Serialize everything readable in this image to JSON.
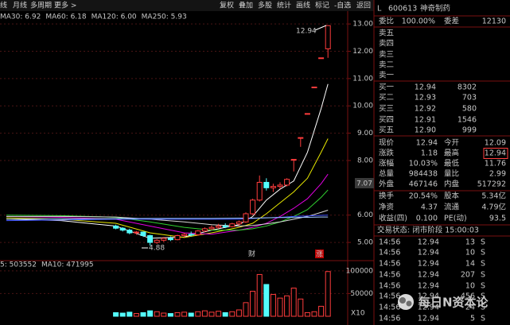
{
  "toolbar": {
    "left": [
      "线",
      "月线",
      "多周期",
      "更多 >"
    ],
    "right": [
      "复权",
      "叠加",
      "多股",
      "统计",
      "画线",
      "标记",
      "-自选",
      "返回"
    ]
  },
  "chart_data": [
    {
      "type": "candlestick",
      "x": [
        16,
        17,
        18,
        19,
        20,
        21,
        22,
        23,
        24,
        25,
        26,
        27,
        28,
        29,
        30,
        31,
        32,
        33,
        34,
        35,
        36,
        37,
        38,
        39,
        40,
        41,
        42,
        43,
        44,
        45,
        46,
        47
      ],
      "open": [
        5.6,
        5.52,
        5.45,
        5.35,
        5.38,
        5.25,
        5.0,
        5.08,
        5.15,
        5.1,
        5.25,
        5.3,
        5.28,
        5.42,
        5.5,
        5.55,
        5.6,
        5.58,
        5.68,
        5.75,
        6.05,
        6.55,
        7.2,
        7.0,
        7.05,
        7.1,
        8.04,
        8.84,
        9.72,
        10.69,
        11.76,
        12.09
      ],
      "high": [
        5.65,
        5.56,
        5.5,
        5.42,
        5.4,
        5.28,
        5.12,
        5.2,
        5.22,
        5.28,
        5.35,
        5.4,
        5.45,
        5.55,
        5.62,
        5.68,
        5.7,
        5.72,
        5.8,
        6.1,
        6.6,
        7.45,
        7.35,
        7.15,
        7.2,
        7.35,
        8.04,
        8.84,
        9.72,
        10.69,
        11.76,
        12.94
      ],
      "low": [
        5.48,
        5.4,
        5.3,
        5.28,
        5.2,
        4.88,
        4.95,
        5.02,
        5.05,
        5.08,
        5.18,
        5.22,
        5.25,
        5.38,
        5.45,
        5.5,
        5.52,
        5.55,
        5.62,
        5.72,
        6.0,
        6.5,
        6.9,
        6.85,
        6.95,
        7.05,
        7.6,
        8.5,
        9.72,
        10.69,
        11.76,
        11.76
      ],
      "close": [
        5.52,
        5.45,
        5.35,
        5.38,
        5.25,
        5.0,
        5.08,
        5.15,
        5.1,
        5.25,
        5.3,
        5.28,
        5.42,
        5.5,
        5.55,
        5.6,
        5.58,
        5.68,
        5.75,
        6.05,
        6.55,
        7.2,
        7.0,
        7.05,
        7.1,
        7.31,
        8.04,
        8.84,
        9.72,
        10.69,
        11.76,
        12.94
      ],
      "up_color": "#ff3c3c",
      "down_color": "#54fcfc",
      "ylim": [
        4.42,
        13.47
      ],
      "yticks": [
        {
          "value": 13,
          "label": "13.00"
        },
        {
          "value": 12,
          "label": "12.00"
        },
        {
          "value": 11,
          "label": "11.00"
        },
        {
          "value": 10,
          "label": "10.00"
        },
        {
          "value": 9,
          "label": "9.00"
        },
        {
          "value": 8,
          "label": "8.00"
        },
        {
          "value": 6,
          "label": "6.00"
        },
        {
          "value": 5,
          "label": "5.00"
        }
      ],
      "grid": true,
      "series": [
        {
          "color": "#ffffff",
          "x": [
            0,
            8,
            16,
            21,
            26,
            30,
            34,
            36,
            38,
            40,
            42,
            44,
            46,
            47
          ],
          "values": [
            5.85,
            5.8,
            5.6,
            5.15,
            5.2,
            5.45,
            5.65,
            5.95,
            6.55,
            6.95,
            7.25,
            8.3,
            9.9,
            10.8
          ]
        },
        {
          "color": "#e8e800",
          "x": [
            0,
            8,
            16,
            21,
            26,
            30,
            34,
            36,
            38,
            40,
            42,
            44,
            46,
            47
          ],
          "values": [
            5.9,
            5.85,
            5.7,
            5.35,
            5.18,
            5.35,
            5.55,
            5.7,
            6.05,
            6.45,
            6.85,
            7.35,
            8.3,
            8.8
          ]
        },
        {
          "color": "#e000e0",
          "x": [
            0,
            8,
            16,
            21,
            26,
            30,
            34,
            36,
            38,
            40,
            42,
            44,
            46,
            47
          ],
          "values": [
            5.95,
            5.92,
            5.85,
            5.6,
            5.35,
            5.3,
            5.45,
            5.55,
            5.7,
            5.95,
            6.25,
            6.6,
            7.15,
            7.5
          ]
        },
        {
          "name": "MA30: 6.92",
          "color": "#30d030",
          "x": [
            0,
            8,
            16,
            21,
            26,
            30,
            34,
            36,
            38,
            40,
            42,
            44,
            46,
            47
          ],
          "values": [
            6.0,
            5.98,
            5.92,
            5.75,
            5.55,
            5.45,
            5.45,
            5.5,
            5.6,
            5.75,
            5.95,
            6.2,
            6.65,
            6.92
          ]
        },
        {
          "name": "MA60: 6.18",
          "color": "#d8d8d8",
          "x": [
            0,
            8,
            16,
            21,
            26,
            30,
            34,
            36,
            38,
            40,
            42,
            44,
            46,
            47
          ],
          "values": [
            5.95,
            5.95,
            5.93,
            5.85,
            5.75,
            5.65,
            5.6,
            5.62,
            5.68,
            5.75,
            5.85,
            5.95,
            6.1,
            6.18
          ]
        },
        {
          "name": "MA120: 6.00",
          "color": "#3c50ff",
          "x": [
            0,
            8,
            16,
            21,
            26,
            30,
            34,
            36,
            38,
            40,
            42,
            44,
            46,
            47
          ],
          "values": [
            5.8,
            5.82,
            5.85,
            5.85,
            5.85,
            5.85,
            5.85,
            5.88,
            5.9,
            5.92,
            5.95,
            5.97,
            5.99,
            6.0
          ]
        },
        {
          "name": "MA250: 5.93",
          "color": "#a0c8ff",
          "x": [
            0,
            8,
            16,
            21,
            26,
            30,
            34,
            36,
            38,
            40,
            42,
            44,
            46,
            47
          ],
          "values": [
            5.85,
            5.86,
            5.87,
            5.88,
            5.88,
            5.88,
            5.89,
            5.89,
            5.9,
            5.91,
            5.91,
            5.92,
            5.93,
            5.93
          ]
        }
      ],
      "annotations": [
        "4.88",
        "12.94",
        "财",
        "涨"
      ],
      "crosshair_label": "7.07"
    },
    {
      "type": "bar",
      "x": [
        16,
        17,
        18,
        19,
        20,
        21,
        22,
        23,
        24,
        25,
        26,
        27,
        28,
        29,
        30,
        31,
        32,
        33,
        34,
        35,
        36,
        37,
        38,
        39,
        40,
        41,
        42,
        43,
        44,
        45,
        46,
        47
      ],
      "values": [
        8000,
        7000,
        9000,
        6000,
        8000,
        12000,
        10000,
        7000,
        6000,
        8000,
        9000,
        7000,
        10000,
        12000,
        9000,
        11000,
        8000,
        10000,
        14000,
        30000,
        55000,
        92000,
        70000,
        48000,
        40000,
        45000,
        62000,
        38000,
        8000,
        10000,
        22000,
        98444
      ],
      "ylim": [
        0,
        105000
      ],
      "yticks": [
        100000,
        50000
      ],
      "unit": "X10",
      "legend": [
        "5: 503552",
        "MA10: 471995"
      ]
    }
  ],
  "quote": {
    "market": "L",
    "code": "600613",
    "name": "神奇制药",
    "ratio_row": [
      "委比",
      "100.00%",
      "委差",
      "12130"
    ],
    "asks": [
      "卖五",
      "卖四",
      "卖三",
      "卖二",
      "卖一"
    ],
    "bids": [
      [
        "买一",
        "12.94",
        "8302"
      ],
      [
        "买二",
        "12.93",
        "703"
      ],
      [
        "买三",
        "12.92",
        "580"
      ],
      [
        "买四",
        "12.91",
        "1546"
      ],
      [
        "买五",
        "12.90",
        "999"
      ]
    ],
    "stats": [
      [
        "现价",
        "12.94",
        "今开",
        "12.09"
      ],
      [
        "涨跌",
        "1.18",
        "最高",
        "12.94"
      ],
      [
        "涨幅",
        "10.03%",
        "最低",
        "11.76"
      ],
      [
        "总量",
        "984438",
        "量比",
        "2.99"
      ],
      [
        "外盘",
        "467146",
        "内盘",
        "517292"
      ],
      [
        "换手",
        "20.54%",
        "股本",
        "5.34亿"
      ],
      [
        "净资",
        "4.37",
        "流通",
        "4.79亿"
      ],
      [
        "收益(四)",
        "0.100",
        "PE(动)",
        "93.5"
      ]
    ],
    "status": "交易状态: 闭市阶段 15:00:03",
    "trades": [
      [
        "14:56",
        "12.94",
        "13",
        "S"
      ],
      [
        "14:56",
        "12.94",
        "10",
        "S"
      ],
      [
        "14:56",
        "12.94",
        "14",
        "S"
      ],
      [
        "14:56",
        "12.94",
        "207",
        "S"
      ],
      [
        "14:56",
        "12.94",
        "10",
        "S"
      ],
      [
        "14:56",
        "12.94",
        "456",
        "S"
      ],
      [
        "14:56",
        "12.94",
        "24",
        "S"
      ],
      [
        "14:56",
        "12.94",
        "5",
        "S"
      ]
    ]
  },
  "watermark": "每日N资本论"
}
